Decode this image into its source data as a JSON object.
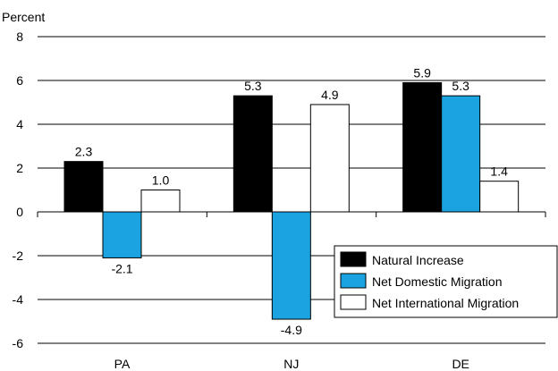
{
  "chart_data": {
    "type": "bar",
    "ylabel": "Percent",
    "ylim": [
      -6,
      8
    ],
    "yticks": [
      8,
      6,
      4,
      2,
      0,
      -2,
      -4,
      -6
    ],
    "grid": true,
    "legend_position": "bottom-right",
    "categories": [
      "PA",
      "NJ",
      "DE"
    ],
    "series": [
      {
        "name": "Natural Increase",
        "color": "#000000",
        "values": [
          2.3,
          5.3,
          5.9
        ],
        "labels": [
          "2.3",
          "5.3",
          "5.9"
        ]
      },
      {
        "name": "Net Domestic Migration",
        "color": "#1aa3e0",
        "values": [
          -2.1,
          -4.9,
          5.3
        ],
        "labels": [
          "-2.1",
          "-4.9",
          "5.3"
        ]
      },
      {
        "name": "Net International Migration",
        "color": "#ffffff",
        "values": [
          1.0,
          4.9,
          1.4
        ],
        "labels": [
          "1.0",
          "4.9",
          "1.4"
        ]
      }
    ]
  }
}
